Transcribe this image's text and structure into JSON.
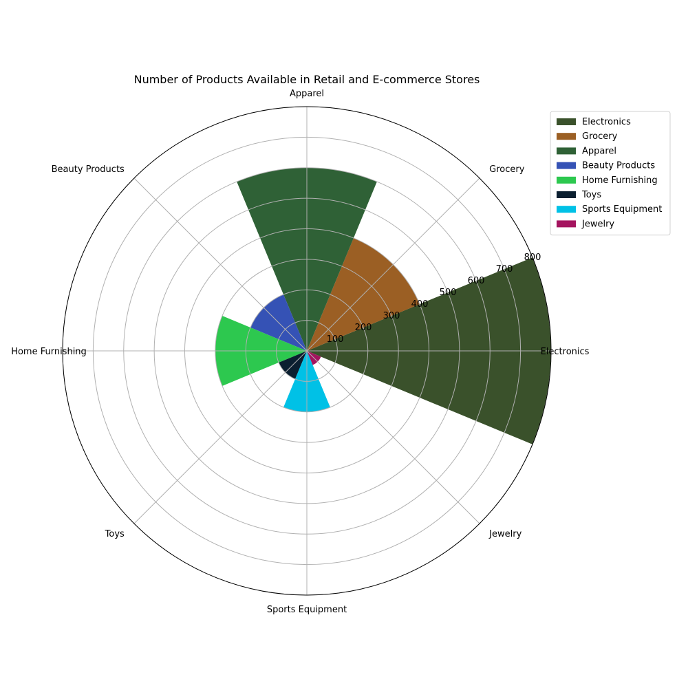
{
  "chart_data": {
    "type": "polar-bar",
    "title": "Number of Products Available in Retail and E-commerce Stores",
    "categories": [
      "Electronics",
      "Grocery",
      "Apparel",
      "Beauty Products",
      "Home Furnishing",
      "Toys",
      "Sports Equipment",
      "Jewelry"
    ],
    "values": [
      800,
      400,
      600,
      200,
      300,
      100,
      200,
      50
    ],
    "colors": [
      "#3a512b",
      "#9b5f24",
      "#2f6136",
      "#3552b5",
      "#2dc84f",
      "#0b1f30",
      "#00c1e6",
      "#a4145f"
    ],
    "rticks": [
      100,
      200,
      300,
      400,
      500,
      600,
      700,
      800
    ],
    "rlim": [
      0,
      800
    ],
    "legend_position": "upper-right",
    "grid": true
  }
}
